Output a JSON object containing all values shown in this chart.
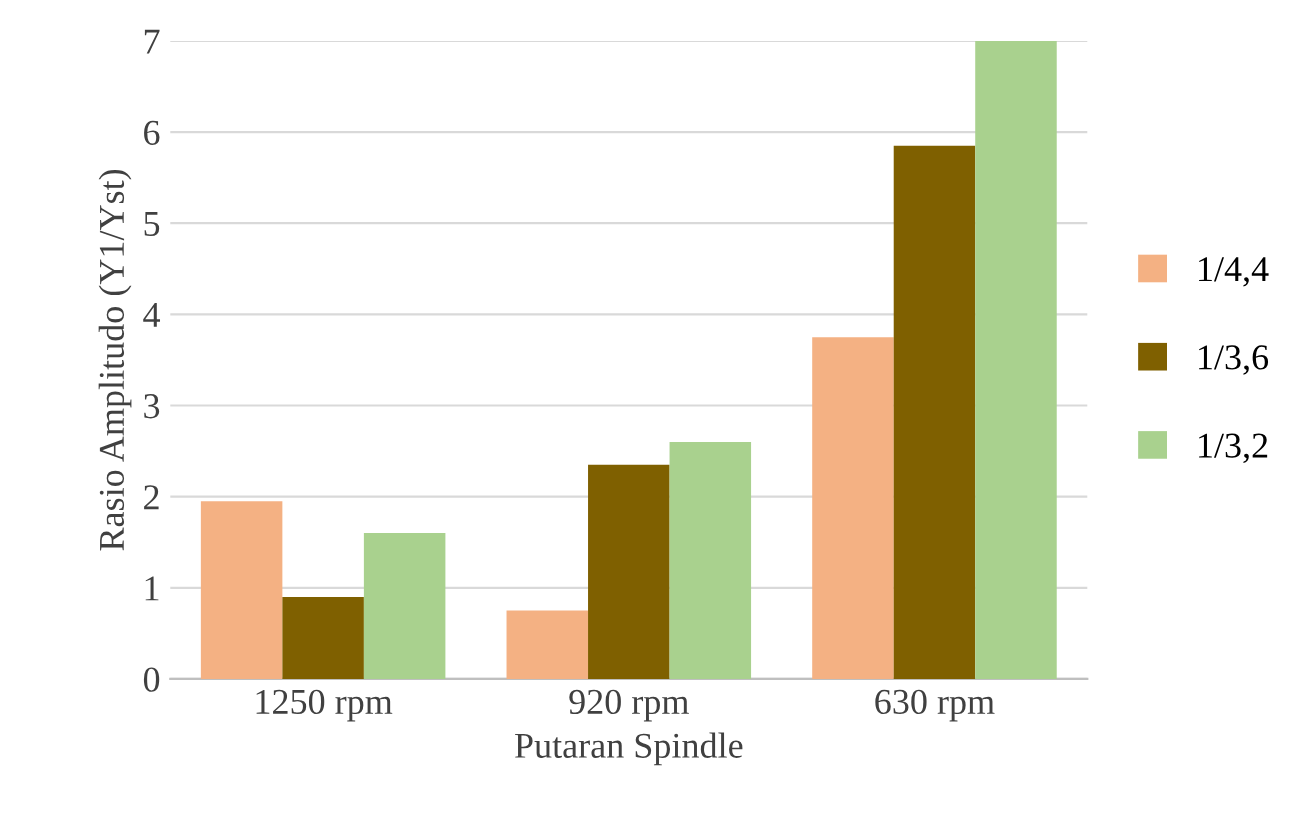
{
  "chart_data": {
    "type": "bar",
    "xlabel": "Putaran Spindle",
    "ylabel": "Rasio Amplitudo (Y1/Yst)",
    "categories": [
      "1250 rpm",
      "920 rpm",
      "630 rpm"
    ],
    "series": [
      {
        "name": "1/4,4",
        "color": "#f4b183",
        "values": [
          1.95,
          0.75,
          3.75
        ]
      },
      {
        "name": "1/3,6",
        "color": "#7f6000",
        "values": [
          0.9,
          2.35,
          5.85
        ]
      },
      {
        "name": "1/3,2",
        "color": "#a9d18e",
        "values": [
          1.6,
          2.6,
          7.0
        ]
      }
    ],
    "ylim": [
      0,
      7
    ],
    "yticks": [
      0,
      1,
      2,
      3,
      4,
      5,
      6,
      7
    ],
    "grid": "y",
    "legend": "right"
  }
}
